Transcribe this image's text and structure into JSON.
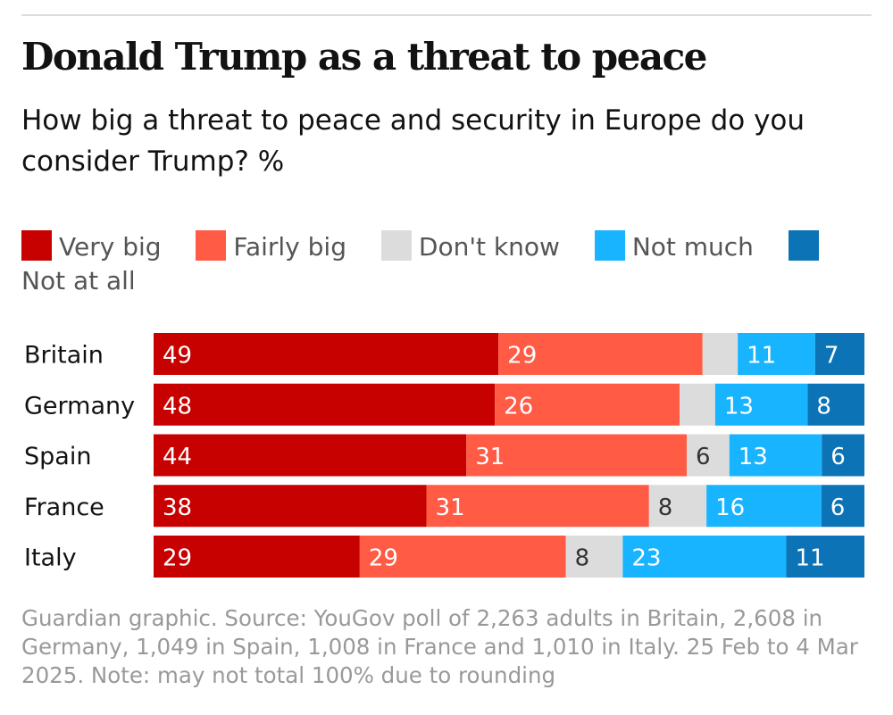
{
  "title": "Donald Trump as a threat to peace",
  "subtitle": "How big a threat to peace and security in Europe do you consider Trump? %",
  "colors": {
    "very_big": "#c70000",
    "fairly_big": "#ff5b45",
    "dont_know": "#dcdcdc",
    "not_much": "#18b4ff",
    "not_at_all": "#0b73b6",
    "label_light": "#ffffff",
    "label_dark": "#333333"
  },
  "legend": [
    {
      "key": "very_big",
      "label": "Very big"
    },
    {
      "key": "fairly_big",
      "label": "Fairly big"
    },
    {
      "key": "dont_know",
      "label": "Don't know"
    },
    {
      "key": "not_much",
      "label": "Not much"
    },
    {
      "key": "not_at_all",
      "label": "Not at all"
    }
  ],
  "chart_data": {
    "type": "bar",
    "orientation": "horizontal",
    "stacked": true,
    "title": "Donald Trump as a threat to peace",
    "subtitle": "How big a threat to peace and security in Europe do you consider Trump? %",
    "unit": "%",
    "legend_position": "top",
    "categories": [
      "Britain",
      "Germany",
      "Spain",
      "France",
      "Italy"
    ],
    "series": [
      {
        "key": "very_big",
        "name": "Very big",
        "values": [
          49,
          48,
          44,
          38,
          29
        ]
      },
      {
        "key": "fairly_big",
        "name": "Fairly big",
        "values": [
          29,
          26,
          31,
          31,
          29
        ]
      },
      {
        "key": "dont_know",
        "name": "Don't know",
        "values": [
          5,
          5,
          6,
          8,
          8
        ]
      },
      {
        "key": "not_much",
        "name": "Not much",
        "values": [
          11,
          13,
          13,
          16,
          23
        ]
      },
      {
        "key": "not_at_all",
        "name": "Not at all",
        "values": [
          7,
          8,
          6,
          6,
          11
        ]
      }
    ],
    "hidden_labels": [
      {
        "series": "dont_know",
        "category": "Britain"
      },
      {
        "series": "dont_know",
        "category": "Germany"
      }
    ],
    "xlim": [
      0,
      100
    ]
  },
  "source": "Guardian graphic. Source: YouGov poll of 2,263 adults in Britain, 2,608 in Germany, 1,049 in Spain, 1,008 in France and 1,010 in Italy. 25 Feb to 4 Mar 2025. Note: may not total 100% due to rounding"
}
